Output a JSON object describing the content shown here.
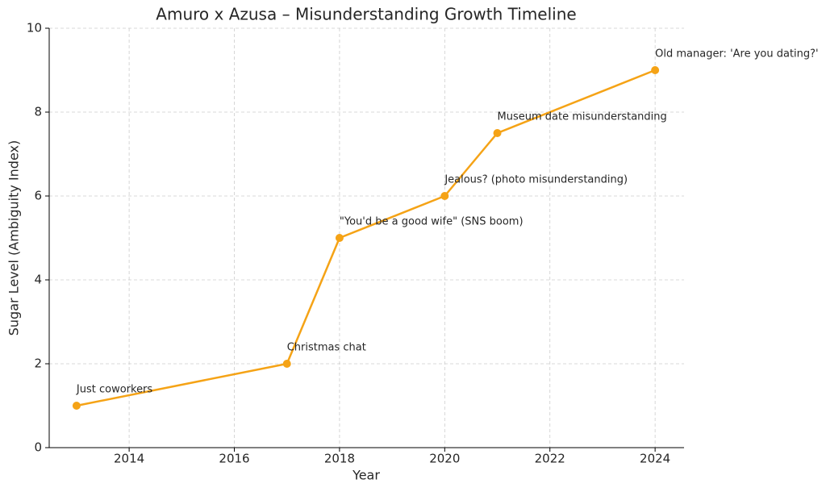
{
  "chart_data": {
    "type": "line",
    "title": "Amuro x Azusa – Misunderstanding Growth Timeline",
    "x_label": "Year",
    "y_label": "Sugar Level (Ambiguity Index)",
    "x": [
      2013,
      2017,
      2018,
      2020,
      2021,
      2024
    ],
    "values": [
      1,
      2,
      5,
      6,
      7.5,
      9
    ],
    "annotations": [
      "Just coworkers",
      "Christmas chat",
      "\"You'd be a good wife\" (SNS boom)",
      "Jealous? (photo misunderstanding)",
      "Museum date misunderstanding",
      "Old manager: 'Are you dating?'"
    ],
    "color": "#f5a316",
    "xlim": [
      2012.48,
      2024.55
    ],
    "ylim": [
      0,
      10
    ],
    "xticks": [
      2014,
      2016,
      2018,
      2020,
      2022,
      2024
    ],
    "yticks": [
      0,
      2,
      4,
      6,
      8,
      10
    ],
    "grid": true
  }
}
